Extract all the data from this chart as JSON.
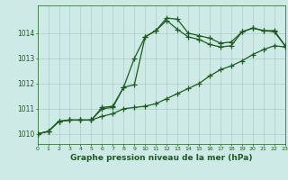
{
  "hours": [
    0,
    1,
    2,
    3,
    4,
    5,
    6,
    7,
    8,
    9,
    10,
    11,
    12,
    13,
    14,
    15,
    16,
    17,
    18,
    19,
    20,
    21,
    22,
    23
  ],
  "line_slow": [
    1010.0,
    1010.1,
    1010.5,
    1010.55,
    1010.55,
    1010.55,
    1010.7,
    1010.8,
    1011.0,
    1011.05,
    1011.1,
    1011.2,
    1011.4,
    1011.6,
    1011.8,
    1012.0,
    1012.3,
    1012.55,
    1012.7,
    1012.9,
    1013.15,
    1013.35,
    1013.5,
    1013.45
  ],
  "line_peak": [
    1010.0,
    1010.1,
    1010.5,
    1010.55,
    1010.55,
    1010.55,
    1011.05,
    1011.1,
    1011.85,
    1011.95,
    1013.85,
    1014.1,
    1014.6,
    1014.55,
    1014.0,
    1013.9,
    1013.8,
    1013.6,
    1013.65,
    1014.05,
    1014.2,
    1014.1,
    1014.1,
    1013.5
  ],
  "line_mid": [
    1010.0,
    1010.1,
    1010.5,
    1010.55,
    1010.55,
    1010.55,
    1011.0,
    1011.05,
    1011.85,
    1013.0,
    1013.85,
    1014.1,
    1014.5,
    1014.15,
    1013.85,
    1013.75,
    1013.55,
    1013.45,
    1013.5,
    1014.05,
    1014.2,
    1014.1,
    1014.05,
    1013.5
  ],
  "bg_color": "#ceeae6",
  "grid_color": "#aacccc",
  "line_color": "#1a5e1a",
  "ylabel_ticks": [
    1010,
    1011,
    1012,
    1013,
    1014
  ],
  "ylim": [
    1009.6,
    1015.1
  ],
  "xlim": [
    0,
    23
  ],
  "xlabel": "Graphe pression niveau de la mer (hPa)",
  "marker": "+",
  "markersize": 4,
  "linewidth": 0.9
}
